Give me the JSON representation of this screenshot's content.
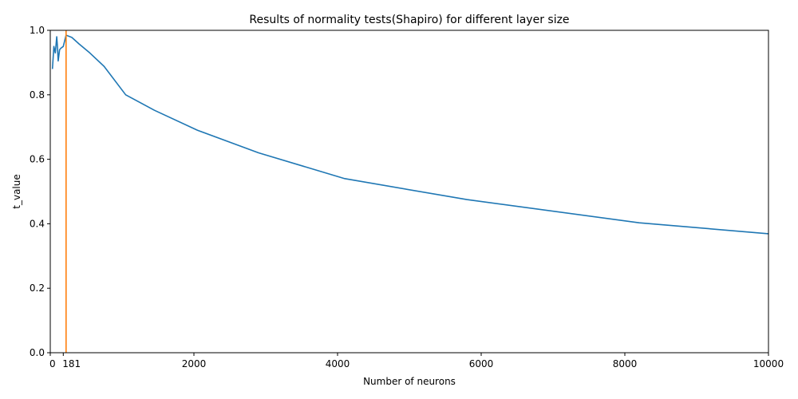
{
  "chart_data": {
    "type": "line",
    "title": "Results of normality tests(Shapiro) for different layer size",
    "xlabel": "Number of neurons",
    "ylabel": "t_value",
    "xlim": [
      0,
      10000
    ],
    "ylim": [
      0,
      1.0
    ],
    "x_ticks": [
      {
        "value": 0,
        "label": "0"
      },
      {
        "value": 181,
        "label": "181"
      },
      {
        "value": 2000,
        "label": "2000"
      },
      {
        "value": 4000,
        "label": "4000"
      },
      {
        "value": 6000,
        "label": "6000"
      },
      {
        "value": 8000,
        "label": "8000"
      },
      {
        "value": 10000,
        "label": "10000"
      }
    ],
    "y_ticks": [
      {
        "value": 0.0,
        "label": "0.0"
      },
      {
        "value": 0.2,
        "label": "0.2"
      },
      {
        "value": 0.4,
        "label": "0.4"
      },
      {
        "value": 0.6,
        "label": "0.6"
      },
      {
        "value": 0.8,
        "label": "0.8"
      },
      {
        "value": 1.0,
        "label": "1.0"
      }
    ],
    "grid": false,
    "series": [
      {
        "color": "#1f77b4",
        "x": [
          30,
          50,
          70,
          90,
          100,
          110,
          130,
          150,
          181,
          220,
          300,
          400,
          550,
          750,
          1050,
          1450,
          2050,
          2900,
          4100,
          5800,
          8200,
          10000
        ],
        "y": [
          0.88,
          0.95,
          0.93,
          0.98,
          0.95,
          0.905,
          0.94,
          0.945,
          0.95,
          0.985,
          0.978,
          0.958,
          0.93,
          0.888,
          0.8,
          0.752,
          0.69,
          0.62,
          0.54,
          0.475,
          0.403,
          0.369
        ]
      }
    ],
    "vlines": [
      {
        "x": 220,
        "color": "#ff7f0e"
      }
    ]
  }
}
